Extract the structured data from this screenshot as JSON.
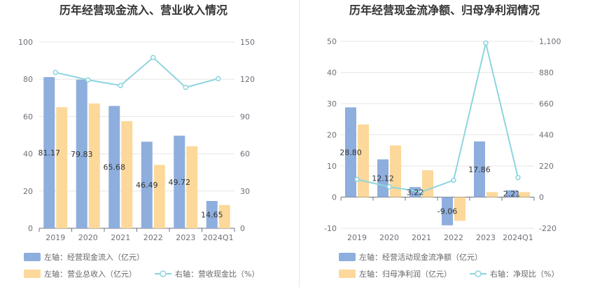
{
  "chart_data": [
    {
      "type": "bar",
      "title": "历年经营现金流入、营业收入情况",
      "categories": [
        "2019",
        "2020",
        "2021",
        "2022",
        "2023",
        "2024Q1"
      ],
      "left_axis": {
        "ticks": [
          "0",
          "20",
          "40",
          "60",
          "80",
          "100"
        ],
        "min": 0,
        "max": 100
      },
      "right_axis": {
        "ticks": [
          "0",
          "30",
          "60",
          "90",
          "120",
          "150"
        ],
        "min": 0,
        "max": 150
      },
      "series": [
        {
          "name": "左轴：经营现金流入（亿元）",
          "axis": "left",
          "kind": "bar",
          "color": "#8eaedd",
          "values": [
            81.17,
            79.83,
            65.68,
            46.49,
            49.72,
            14.65
          ],
          "labels": [
            "81.17",
            "79.83",
            "65.68",
            "46.49",
            "49.72",
            "14.65"
          ]
        },
        {
          "name": "左轴：营业总收入（亿元）",
          "axis": "left",
          "kind": "bar",
          "color": "#fcd89a",
          "values": [
            65,
            67,
            57.5,
            34,
            44,
            12.5
          ]
        },
        {
          "name": "右轴：营收现金比（%）",
          "axis": "right",
          "kind": "line",
          "color": "#8dd5de",
          "values": [
            125.5,
            119.5,
            115,
            137.5,
            113.5,
            120.5
          ]
        }
      ]
    },
    {
      "type": "bar",
      "title": "历年经营现金流净额、归母净利润情况",
      "categories": [
        "2019",
        "2020",
        "2021",
        "2022",
        "2023",
        "2024Q1"
      ],
      "left_axis": {
        "ticks": [
          "-10",
          "0",
          "10",
          "20",
          "30",
          "40",
          "50"
        ],
        "min": -10,
        "max": 50
      },
      "right_axis": {
        "ticks": [
          "-220",
          "0",
          "220",
          "440",
          "660",
          "880",
          "1,100"
        ],
        "min": -220,
        "max": 1100
      },
      "series": [
        {
          "name": "左轴：经营活动现金流净额（亿元）",
          "axis": "left",
          "kind": "bar",
          "color": "#8eaedd",
          "values": [
            28.8,
            12.12,
            3.22,
            -9.06,
            17.86,
            2.21
          ],
          "labels": [
            "28.80",
            "12.12",
            "3.22",
            "-9.06",
            "17.86",
            "2.21"
          ]
        },
        {
          "name": "左轴：归母净利润（亿元）",
          "axis": "left",
          "kind": "bar",
          "color": "#fcd89a",
          "values": [
            23.3,
            16.6,
            8.6,
            -7.6,
            1.6,
            1.6
          ]
        },
        {
          "name": "右轴：净现比（%）",
          "axis": "right",
          "kind": "line",
          "color": "#8dd5de",
          "values": [
            125,
            73,
            37,
            119,
            1088,
            138
          ]
        }
      ]
    }
  ]
}
